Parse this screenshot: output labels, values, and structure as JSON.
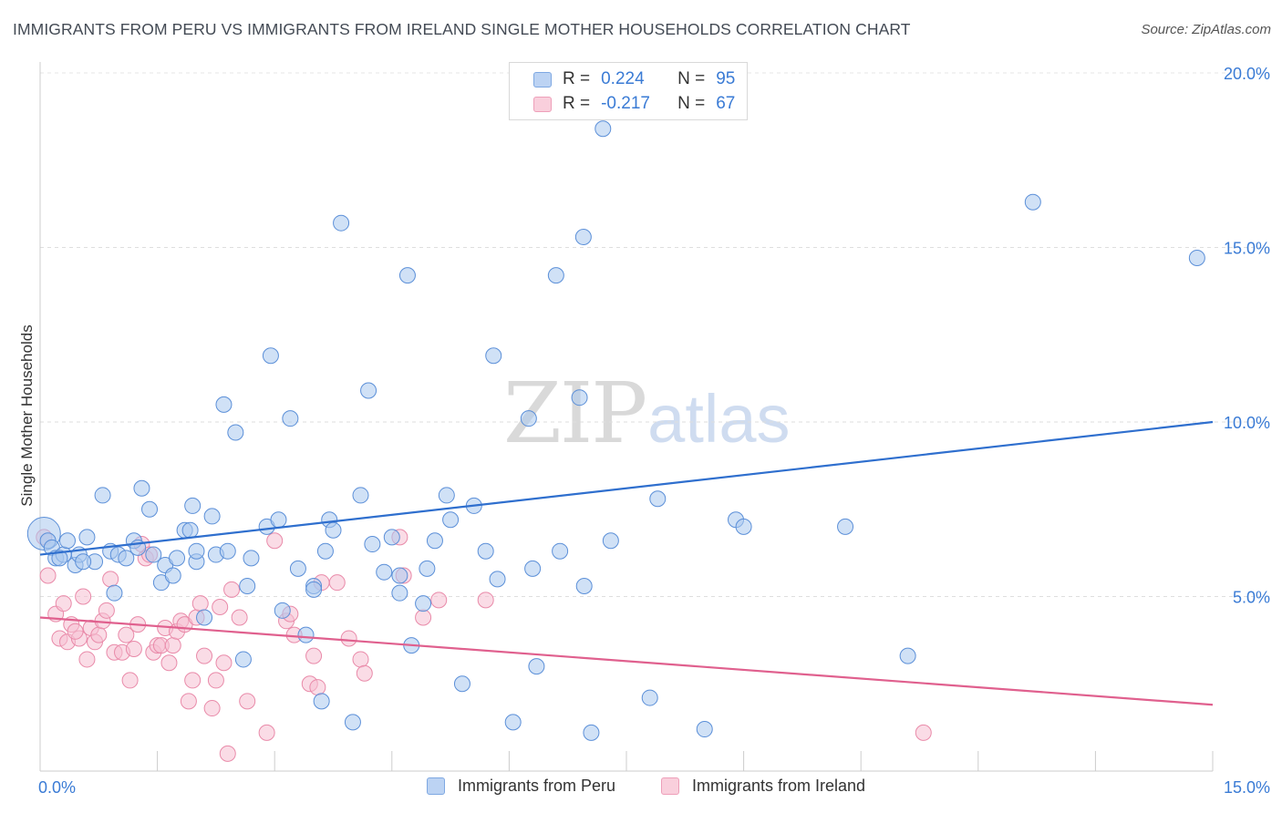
{
  "header": {
    "title": "IMMIGRANTS FROM PERU VS IMMIGRANTS FROM IRELAND SINGLE MOTHER HOUSEHOLDS CORRELATION CHART",
    "source": "Source: ZipAtlas.com"
  },
  "watermark": {
    "zip": "ZIP",
    "atlas": "atlas"
  },
  "legend": {
    "rows": [
      {
        "r_label": "R =",
        "r_value": "0.224",
        "n_label": "N =",
        "n_value": "95"
      },
      {
        "r_label": "R =",
        "r_value": "-0.217",
        "n_label": "N =",
        "n_value": "67"
      }
    ]
  },
  "bottom_legend": {
    "peru": "Immigrants from Peru",
    "ireland": "Immigrants from Ireland"
  },
  "colors": {
    "peru_fill": "#aac8ef",
    "peru_stroke": "#5b8fd8",
    "peru_line": "#2f6fce",
    "ireland_fill": "#f6c0d1",
    "ireland_stroke": "#e98aa9",
    "ireland_line": "#e0608e",
    "axis_text": "#3a7bd5"
  },
  "chart_data": {
    "type": "scatter",
    "title": "IMMIGRANTS FROM PERU VS IMMIGRANTS FROM IRELAND SINGLE MOTHER HOUSEHOLDS CORRELATION CHART",
    "xlabel": "",
    "ylabel": "Single Mother Households",
    "xlim": [
      0,
      15
    ],
    "ylim": [
      0,
      20
    ],
    "x_tick_labels": [
      "0.0%",
      "15.0%"
    ],
    "y_ticks": [
      5,
      10,
      15,
      20
    ],
    "y_tick_labels": [
      "5.0%",
      "10.0%",
      "15.0%",
      "20.0%"
    ],
    "grid": true,
    "legend_position": "top-center",
    "series": [
      {
        "name": "Immigrants from Peru",
        "r": 0.224,
        "n": 95,
        "trend": [
          [
            0,
            6.2
          ],
          [
            15,
            10.0
          ]
        ],
        "points": [
          [
            0.05,
            6.8
          ],
          [
            0.1,
            6.6
          ],
          [
            0.15,
            6.4
          ],
          [
            0.2,
            6.1
          ],
          [
            0.3,
            6.2
          ],
          [
            0.35,
            6.6
          ],
          [
            0.45,
            5.9
          ],
          [
            0.5,
            6.2
          ],
          [
            0.6,
            6.7
          ],
          [
            0.7,
            6.0
          ],
          [
            0.8,
            7.9
          ],
          [
            0.9,
            6.3
          ],
          [
            0.95,
            5.1
          ],
          [
            1.0,
            6.2
          ],
          [
            1.1,
            6.1
          ],
          [
            1.2,
            6.6
          ],
          [
            1.3,
            8.1
          ],
          [
            1.4,
            7.5
          ],
          [
            1.45,
            6.2
          ],
          [
            1.55,
            5.4
          ],
          [
            1.6,
            5.9
          ],
          [
            1.7,
            5.6
          ],
          [
            1.75,
            6.1
          ],
          [
            1.85,
            6.9
          ],
          [
            1.92,
            6.9
          ],
          [
            1.95,
            7.6
          ],
          [
            2.0,
            6.0
          ],
          [
            2.1,
            4.4
          ],
          [
            2.2,
            7.3
          ],
          [
            2.25,
            6.2
          ],
          [
            2.35,
            10.5
          ],
          [
            2.4,
            6.3
          ],
          [
            2.5,
            9.7
          ],
          [
            2.6,
            3.2
          ],
          [
            2.65,
            5.3
          ],
          [
            2.7,
            6.1
          ],
          [
            2.9,
            7.0
          ],
          [
            2.95,
            11.9
          ],
          [
            3.05,
            7.2
          ],
          [
            3.1,
            4.6
          ],
          [
            3.2,
            10.1
          ],
          [
            3.3,
            5.8
          ],
          [
            3.4,
            3.9
          ],
          [
            3.5,
            5.3
          ],
          [
            3.6,
            2.0
          ],
          [
            3.65,
            6.3
          ],
          [
            3.7,
            7.2
          ],
          [
            3.75,
            6.9
          ],
          [
            3.85,
            15.7
          ],
          [
            4.0,
            1.4
          ],
          [
            4.1,
            7.9
          ],
          [
            4.2,
            10.9
          ],
          [
            4.25,
            6.5
          ],
          [
            4.4,
            5.7
          ],
          [
            4.5,
            6.7
          ],
          [
            4.6,
            5.1
          ],
          [
            4.7,
            14.2
          ],
          [
            4.75,
            3.6
          ],
          [
            4.9,
            4.8
          ],
          [
            4.95,
            5.8
          ],
          [
            5.05,
            6.6
          ],
          [
            5.2,
            7.9
          ],
          [
            5.25,
            7.2
          ],
          [
            5.4,
            2.5
          ],
          [
            5.55,
            7.6
          ],
          [
            5.7,
            6.3
          ],
          [
            5.8,
            11.9
          ],
          [
            5.85,
            5.5
          ],
          [
            6.05,
            1.4
          ],
          [
            6.25,
            10.1
          ],
          [
            6.3,
            5.8
          ],
          [
            6.35,
            3.0
          ],
          [
            6.6,
            14.2
          ],
          [
            6.65,
            6.3
          ],
          [
            6.9,
            10.7
          ],
          [
            6.95,
            15.3
          ],
          [
            6.96,
            5.3
          ],
          [
            7.05,
            1.1
          ],
          [
            7.2,
            18.4
          ],
          [
            7.3,
            6.6
          ],
          [
            7.8,
            2.1
          ],
          [
            7.9,
            7.8
          ],
          [
            8.5,
            1.2
          ],
          [
            8.9,
            7.2
          ],
          [
            9.0,
            7.0
          ],
          [
            10.3,
            7.0
          ],
          [
            11.1,
            3.3
          ],
          [
            12.7,
            16.3
          ],
          [
            14.8,
            14.7
          ],
          [
            0.25,
            6.1
          ],
          [
            0.55,
            6.0
          ],
          [
            1.25,
            6.4
          ],
          [
            2.0,
            6.3
          ],
          [
            3.5,
            5.2
          ],
          [
            4.6,
            5.6
          ]
        ]
      },
      {
        "name": "Immigrants from Ireland",
        "r": -0.217,
        "n": 67,
        "trend": [
          [
            0,
            4.4
          ],
          [
            15,
            1.9
          ]
        ],
        "points": [
          [
            0.05,
            6.7
          ],
          [
            0.1,
            5.6
          ],
          [
            0.2,
            4.5
          ],
          [
            0.25,
            3.8
          ],
          [
            0.3,
            4.8
          ],
          [
            0.35,
            3.7
          ],
          [
            0.4,
            4.2
          ],
          [
            0.5,
            3.8
          ],
          [
            0.55,
            5.0
          ],
          [
            0.6,
            3.2
          ],
          [
            0.65,
            4.1
          ],
          [
            0.7,
            3.7
          ],
          [
            0.75,
            3.9
          ],
          [
            0.8,
            4.3
          ],
          [
            0.85,
            4.6
          ],
          [
            0.9,
            5.5
          ],
          [
            0.95,
            3.4
          ],
          [
            1.05,
            3.4
          ],
          [
            1.1,
            3.9
          ],
          [
            1.15,
            2.6
          ],
          [
            1.25,
            4.2
          ],
          [
            1.3,
            6.5
          ],
          [
            1.35,
            6.1
          ],
          [
            1.4,
            6.2
          ],
          [
            1.45,
            3.4
          ],
          [
            1.5,
            3.6
          ],
          [
            1.55,
            3.6
          ],
          [
            1.6,
            4.1
          ],
          [
            1.65,
            3.1
          ],
          [
            1.7,
            3.6
          ],
          [
            1.75,
            4.0
          ],
          [
            1.8,
            4.3
          ],
          [
            1.85,
            4.2
          ],
          [
            1.9,
            2.0
          ],
          [
            1.95,
            2.6
          ],
          [
            2.0,
            4.4
          ],
          [
            2.05,
            4.8
          ],
          [
            2.1,
            3.3
          ],
          [
            2.2,
            1.8
          ],
          [
            2.25,
            2.6
          ],
          [
            2.3,
            4.7
          ],
          [
            2.35,
            3.1
          ],
          [
            2.4,
            0.5
          ],
          [
            2.45,
            5.2
          ],
          [
            2.55,
            4.4
          ],
          [
            2.65,
            2.0
          ],
          [
            2.9,
            1.1
          ],
          [
            3.0,
            6.6
          ],
          [
            3.15,
            4.3
          ],
          [
            3.2,
            4.5
          ],
          [
            3.25,
            3.9
          ],
          [
            3.45,
            2.5
          ],
          [
            3.5,
            3.3
          ],
          [
            3.55,
            2.4
          ],
          [
            3.6,
            5.4
          ],
          [
            3.8,
            5.4
          ],
          [
            3.95,
            3.8
          ],
          [
            4.1,
            3.2
          ],
          [
            4.15,
            2.8
          ],
          [
            4.6,
            6.7
          ],
          [
            4.65,
            5.6
          ],
          [
            4.9,
            4.4
          ],
          [
            5.1,
            4.9
          ],
          [
            5.7,
            4.9
          ],
          [
            11.3,
            1.1
          ],
          [
            0.45,
            4.0
          ],
          [
            1.2,
            3.5
          ]
        ]
      }
    ]
  }
}
